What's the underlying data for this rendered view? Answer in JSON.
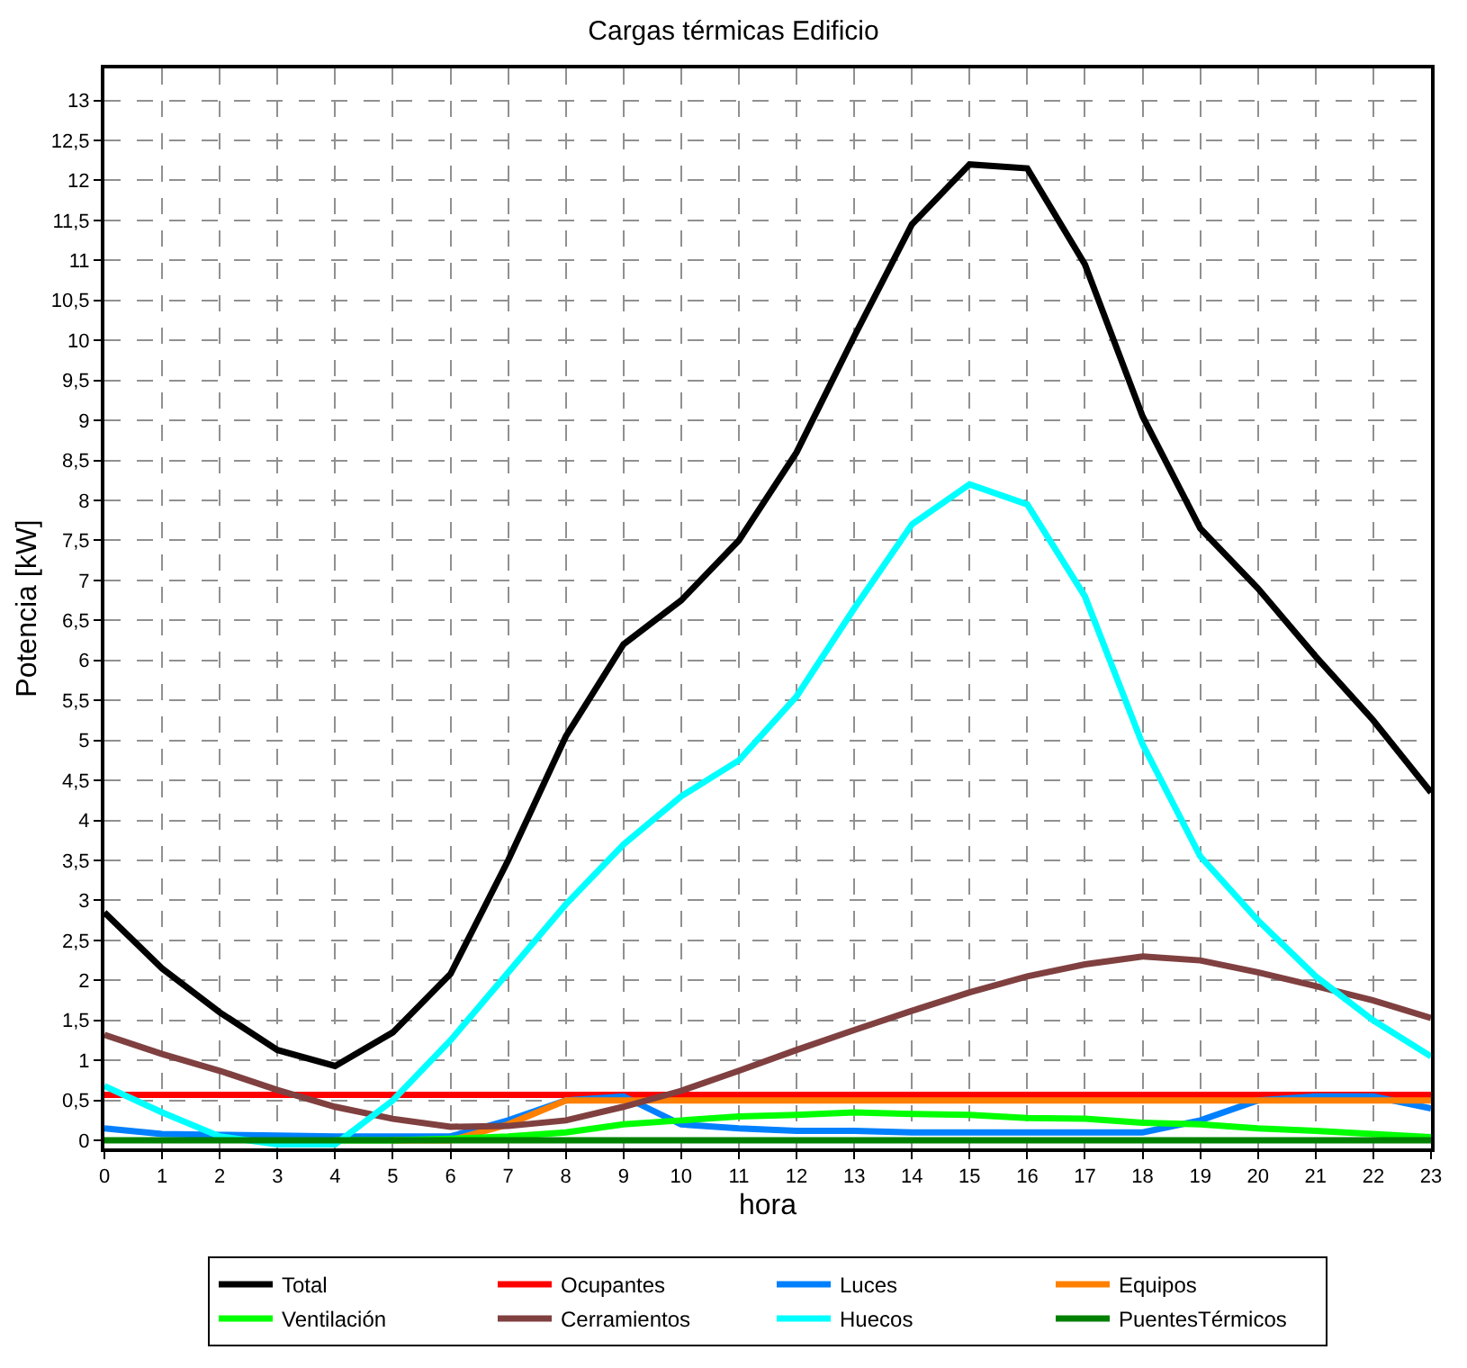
{
  "chart_data": {
    "type": "line",
    "title": "Cargas térmicas Edificio",
    "xlabel": "hora",
    "ylabel": "Potencia [kW]",
    "x": [
      0,
      1,
      2,
      3,
      4,
      5,
      6,
      7,
      8,
      9,
      10,
      11,
      12,
      13,
      14,
      15,
      16,
      17,
      18,
      19,
      20,
      21,
      22,
      23
    ],
    "series": [
      {
        "name": "Total",
        "color": "#000000",
        "values": [
          2.85,
          2.15,
          1.6,
          1.13,
          0.93,
          1.35,
          2.08,
          3.5,
          5.05,
          6.2,
          6.75,
          7.5,
          8.6,
          10.05,
          11.45,
          12.2,
          12.15,
          10.95,
          9.05,
          7.65,
          6.9,
          6.05,
          5.25,
          4.35
        ]
      },
      {
        "name": "Ocupantes",
        "color": "#ff0000",
        "values": [
          0.57,
          0.57,
          0.57,
          0.57,
          0.57,
          0.57,
          0.57,
          0.57,
          0.57,
          0.57,
          0.57,
          0.57,
          0.57,
          0.57,
          0.57,
          0.57,
          0.57,
          0.57,
          0.57,
          0.57,
          0.57,
          0.57,
          0.57,
          0.57
        ]
      },
      {
        "name": "Luces",
        "color": "#0080ff",
        "values": [
          0.15,
          0.08,
          0.07,
          0.06,
          0.05,
          0.05,
          0.05,
          0.25,
          0.5,
          0.55,
          0.2,
          0.15,
          0.12,
          0.12,
          0.1,
          0.1,
          0.1,
          0.1,
          0.1,
          0.25,
          0.5,
          0.55,
          0.55,
          0.4
        ]
      },
      {
        "name": "Equipos",
        "color": "#ff8000",
        "values": [
          null,
          null,
          null,
          null,
          null,
          0,
          0,
          0.2,
          0.5,
          0.5,
          0.5,
          0.5,
          0.5,
          0.5,
          0.5,
          0.5,
          0.5,
          0.5,
          0.5,
          0.5,
          0.5,
          0.5,
          0.5,
          0.5
        ]
      },
      {
        "name": "Ventilación",
        "color": "#00ff00",
        "values": [
          null,
          null,
          null,
          null,
          0,
          0,
          0.02,
          0.05,
          0.1,
          0.2,
          0.25,
          0.3,
          0.32,
          0.35,
          0.33,
          0.32,
          0.28,
          0.27,
          0.22,
          0.2,
          0.15,
          0.12,
          0.08,
          0.04
        ]
      },
      {
        "name": "Cerramientos",
        "color": "#804040",
        "values": [
          1.32,
          1.08,
          0.87,
          0.63,
          0.42,
          0.27,
          0.17,
          0.18,
          0.25,
          0.42,
          0.62,
          0.87,
          1.13,
          1.38,
          1.62,
          1.85,
          2.05,
          2.2,
          2.3,
          2.25,
          2.1,
          1.93,
          1.75,
          1.53
        ]
      },
      {
        "name": "Huecos",
        "color": "#00ffff",
        "values": [
          0.68,
          0.35,
          0.05,
          -0.05,
          -0.05,
          0.5,
          1.25,
          2.1,
          2.95,
          3.7,
          4.3,
          4.75,
          5.55,
          6.65,
          7.7,
          8.2,
          7.95,
          6.8,
          4.95,
          3.55,
          2.75,
          2.05,
          1.5,
          1.05
        ]
      },
      {
        "name": "PuentesTérmicos",
        "color": "#008000",
        "values": [
          0,
          0,
          0,
          0,
          0,
          0,
          0,
          0,
          0,
          0,
          0,
          0,
          0,
          0,
          0,
          0,
          0,
          0,
          0,
          0,
          0,
          0,
          0,
          0
        ]
      }
    ],
    "xlim": [
      0,
      23
    ],
    "xticks": [
      0,
      1,
      2,
      3,
      4,
      5,
      6,
      7,
      8,
      9,
      10,
      11,
      12,
      13,
      14,
      15,
      16,
      17,
      18,
      19,
      20,
      21,
      22,
      23
    ],
    "ylim": [
      -0.1,
      13.4
    ],
    "yticks": [
      0,
      {
        "value": 0.5,
        "label": "0,5"
      },
      1,
      {
        "value": 1.5,
        "label": "1,5"
      },
      2,
      {
        "value": 2.5,
        "label": "2,5"
      },
      3,
      {
        "value": 3.5,
        "label": "3,5"
      },
      4,
      {
        "value": 4.5,
        "label": "4,5"
      },
      5,
      {
        "value": 5.5,
        "label": "5,5"
      },
      6,
      {
        "value": 6.5,
        "label": "6,5"
      },
      7,
      {
        "value": 7.5,
        "label": "7,5"
      },
      8,
      {
        "value": 8.5,
        "label": "8,5"
      },
      9,
      {
        "value": 9.5,
        "label": "9,5"
      },
      10,
      {
        "value": 10.5,
        "label": "10,5"
      },
      11,
      {
        "value": 11.5,
        "label": "11,5"
      },
      12,
      {
        "value": 12.5,
        "label": "12,5"
      },
      13
    ],
    "grid": true,
    "legend": "bottom",
    "marker": "none",
    "line_style": "solid"
  }
}
